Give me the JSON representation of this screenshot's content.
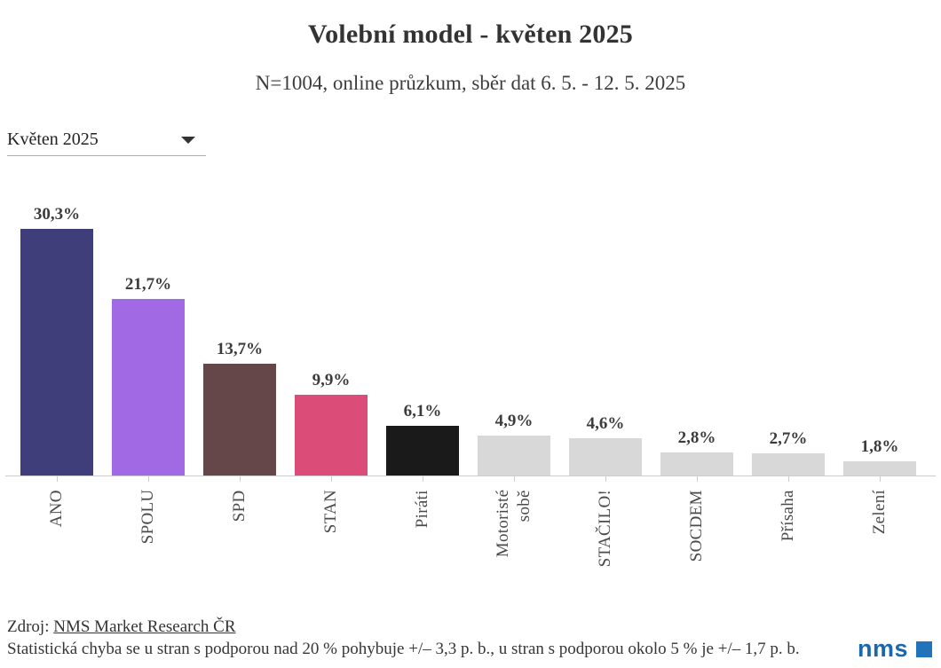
{
  "header": {
    "title": "Volební model - květen 2025",
    "subtitle": "N=1004, online průzkum, sběr dat 6. 5. - 12. 5. 2025"
  },
  "filter": {
    "selected_option": "Květen 2025"
  },
  "chart_data": {
    "type": "bar",
    "title": "Volební model - květen 2025",
    "subtitle": "N=1004, online průzkum, sběr dat 6. 5. - 12. 5. 2025",
    "categories": [
      "ANO",
      "SPOLU",
      "SPD",
      "STAN",
      "Piráti",
      "Motoristé sobě",
      "STAČILO!",
      "SOCDEM",
      "Přísaha",
      "Zelení"
    ],
    "values": [
      30.3,
      21.7,
      13.7,
      9.9,
      6.1,
      4.9,
      4.6,
      2.8,
      2.7,
      1.8
    ],
    "display_values": [
      "30,3%",
      "21,7%",
      "13,7%",
      "9,9%",
      "6,1%",
      "4,9%",
      "4,6%",
      "2,8%",
      "2,7%",
      "1,8%"
    ],
    "bar_colors": [
      "#3f3d7a",
      "#a169e4",
      "#654649",
      "#dc4c79",
      "#1a1a1a",
      "#d8d8d8",
      "#d8d8d8",
      "#d8d8d8",
      "#d8d8d8",
      "#d8d8d8"
    ],
    "xlabel": "",
    "ylabel": "",
    "ylim": [
      0,
      33
    ],
    "grid": false,
    "legend": false,
    "value_labels_position": "above-bars",
    "category_labels_rotation": -90
  },
  "footer": {
    "source_prefix": "Zdroj: ",
    "source_link": "NMS Market Research ČR",
    "note": "Statistická chyba se u stran s podporou nad 20 % pohybuje +/– 3,3 p. b., u stran s podporou okolo 5 % je +/– 1,7 p. b.",
    "logo_text": "nms",
    "logo_color": "#1a67ae"
  }
}
